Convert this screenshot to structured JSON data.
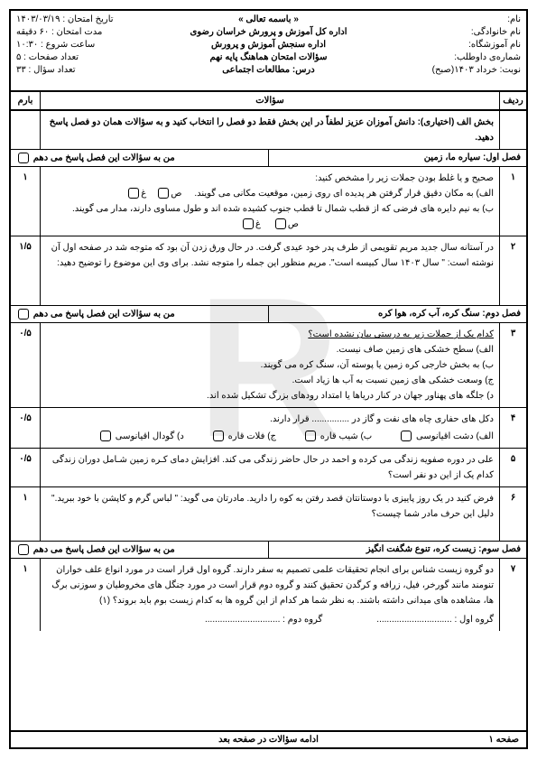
{
  "header": {
    "bismillah": "« باسمه تعالی »",
    "org1": "اداره کل آموزش و پرورش خراسان رضوی",
    "org2": "اداره سنجش آموزش و پرورش",
    "org3": "سؤالات امتحان هماهنگ پایه نهم",
    "course_label": "درس:",
    "course": "مطالعات اجتماعی",
    "right": {
      "name": "نام:",
      "family": "نام خانوادگی:",
      "school": "نام آموزشگاه:",
      "candidate": "شماره‌ی داوطلب:",
      "session": "نوبت: خرداد ۱۴۰۳(صبح)"
    },
    "left": {
      "date": "تاریخ امتحان : ۱۴۰۳/۰۳/۱۹",
      "duration": "مدت امتحان : ۶۰ دقیقه",
      "start": "ساعت شروع : ۱۰:۳۰",
      "pages": "تعداد صفحات : ۵",
      "qcount": "تعداد سؤال : ۳۳"
    }
  },
  "table_head": {
    "row": "ردیف",
    "q": "سؤالات",
    "score": "بارم"
  },
  "intro": "بخش الف (اختیاری): دانش آموزان عزیز لطفاً در این بخش فقط دو فصل را انتخاب کنید و به سؤالات همان دو فصل پاسخ دهید.",
  "sections": {
    "s1": {
      "title": "فصل اول: سیاره ما، زمین",
      "answer": "من به سؤالات این فصل پاسخ می دهم"
    },
    "s2": {
      "title": "فصل دوم: سنگ کره، آب کره، هوا کره",
      "answer": "من به سؤالات این فصل پاسخ می دهم"
    },
    "s3": {
      "title": "فصل سوم: زیست کره، تنوع شگفت انگیز",
      "answer": "من به سؤالات این فصل پاسخ می دهم"
    }
  },
  "q": {
    "q1": {
      "num": "۱",
      "score": "۱",
      "text": "صحیح و یا غلط بودن جملات زیر را مشخص کنید:",
      "a": "الف) به مکان دقیق قرار گرفتن هر پدیده ای روی زمین، موقعیت مکانی می گویند.",
      "b": "ب) به نیم دایره های فرضی که از قطب شمال تا قطب جنوب کشیده شده اند و طول مساوی دارند، مدار می گویند.",
      "opt_s": "ص",
      "opt_g": "غ"
    },
    "q2": {
      "num": "۲",
      "score": "۱/۵",
      "text": "در آستانه سال جدید مریم تقویمی از طرف پدر خود عیدی گرفت. در حال ورق زدن آن بود که متوجه شد در صفحه اول آن نوشته است: \" سال ۱۴۰۳ سال کبیسه است\". مریم منظور این جمله را متوجه نشد. برای وی این موضوع را توضیح دهید:"
    },
    "q3": {
      "num": "۳",
      "score": "۰/۵",
      "text": "کدام یک از جملات زیر به درستی بیان نشده است؟",
      "a": "الف) سطح خشکی های زمین صاف نیست.",
      "b": "ب) به بخش خارجی کره زمین یا پوسته آن، سنگ کره می گویند.",
      "c": "ج) وسعت خشکی های زمین نسبت به آب ها زیاد است.",
      "d": "د) جلگه های پهناور جهان در کنار دریاها یا امتداد رودهای بزرگ تشکیل شده اند."
    },
    "q4": {
      "num": "۴",
      "score": "۰/۵",
      "text": "دکل های حفاری چاه های نفت و گاز در ............... قرار دارند.",
      "a": "الف) دشت اقیانوسی",
      "b": "ب) شیب قاره",
      "c": "ج) فلات قاره",
      "d": "د) گودال اقیانوسی"
    },
    "q5": {
      "num": "۵",
      "score": "۰/۵",
      "text": "علی در دوره صفویه زندگی می کرده و احمد در حال حاضر زندگی می کند. افزایش دمای کـره زمین شـامل دوران زندگی کدام یک از این دو نفر است؟"
    },
    "q6": {
      "num": "۶",
      "score": "۱",
      "text": "فرض کنید در یک روز پاییزی با دوستانتان قصد رفتن به کوه را دارید. مادرتان می گوید: \" لباس گرم و کاپشن با خود ببرید.\" دلیل این حرف مادر شما چیست؟"
    },
    "q7": {
      "num": "۷",
      "score": "۱",
      "text": "دو گروه زیست شناس برای انجام تحقیقات علمی تصمیم به سفر دارند. گروه اول قرار است در مورد انواع علف خواران تنومند مانند گورخر، فیل، زرافه و کرگدن تحقیق کنند و گروه دوم قرار است در مورد جنگل های مخروطیان و سوزنی برگ ها، مشاهده های میدانی داشته باشند. به نظر شما هر کدام از این گروه ها به کدام زیست بوم باید بروند؟ (۱)",
      "g1": "گروه اول :",
      "g2": "گروه دوم :"
    }
  },
  "footer": {
    "page": "صفحه ۱",
    "cont": "ادامه سؤالات در صفحه بعد"
  },
  "watermark": "R"
}
